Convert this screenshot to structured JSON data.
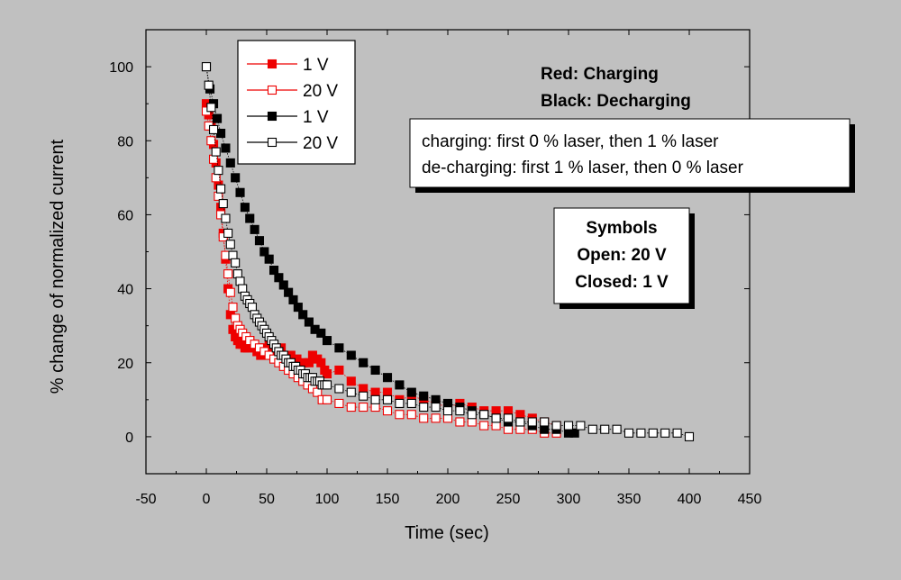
{
  "chart_data": {
    "type": "scatter",
    "title": "",
    "xlabel": "Time (sec)",
    "ylabel": "% change of normalized current",
    "xlim": [
      -50,
      450
    ],
    "ylim": [
      -10,
      110
    ],
    "x_ticks": [
      "-50",
      "0",
      "50",
      "100",
      "150",
      "200",
      "250",
      "300",
      "350",
      "400",
      "450"
    ],
    "y_ticks": [
      "0",
      "20",
      "40",
      "60",
      "80",
      "100"
    ],
    "grid": false,
    "legend_position": "top-left",
    "annotations": {
      "color_key": [
        "Red: Charging",
        "Black: Decharging"
      ],
      "laser_box": [
        "charging: first 0 % laser, then 1 % laser",
        "de-charging: first 1 % laser, then 0 % laser"
      ],
      "symbols_box": [
        "Symbols",
        "Open: 20 V",
        "Closed: 1 V"
      ]
    },
    "colors": {
      "red": "#ee0000",
      "black": "#000000",
      "background": "#c0c0c0"
    },
    "series": [
      {
        "name": "1 V",
        "color": "#ee0000",
        "filled": true,
        "points": [
          [
            0,
            90
          ],
          [
            2,
            87
          ],
          [
            4,
            84
          ],
          [
            6,
            79
          ],
          [
            8,
            74
          ],
          [
            10,
            68
          ],
          [
            12,
            62
          ],
          [
            14,
            55
          ],
          [
            16,
            48
          ],
          [
            18,
            40
          ],
          [
            20,
            33
          ],
          [
            22,
            29
          ],
          [
            24,
            27
          ],
          [
            26,
            26
          ],
          [
            28,
            25
          ],
          [
            30,
            25
          ],
          [
            32,
            24
          ],
          [
            34,
            24
          ],
          [
            36,
            26
          ],
          [
            38,
            25
          ],
          [
            40,
            24
          ],
          [
            42,
            23
          ],
          [
            45,
            22
          ],
          [
            48,
            24
          ],
          [
            52,
            25
          ],
          [
            55,
            24
          ],
          [
            58,
            22
          ],
          [
            62,
            24
          ],
          [
            65,
            22
          ],
          [
            70,
            22
          ],
          [
            75,
            21
          ],
          [
            80,
            20
          ],
          [
            85,
            20
          ],
          [
            88,
            22
          ],
          [
            92,
            21
          ],
          [
            95,
            20
          ],
          [
            98,
            18
          ],
          [
            100,
            17
          ],
          [
            110,
            18
          ],
          [
            120,
            15
          ],
          [
            130,
            13
          ],
          [
            140,
            12
          ],
          [
            150,
            12
          ],
          [
            160,
            10
          ],
          [
            170,
            11
          ],
          [
            180,
            10
          ],
          [
            190,
            9
          ],
          [
            200,
            8
          ],
          [
            210,
            9
          ],
          [
            220,
            8
          ],
          [
            230,
            7
          ],
          [
            240,
            7
          ],
          [
            250,
            7
          ],
          [
            260,
            6
          ],
          [
            270,
            5
          ],
          [
            280,
            4
          ],
          [
            290,
            3
          ]
        ]
      },
      {
        "name": "20 V",
        "color": "#ee0000",
        "filled": false,
        "points": [
          [
            0,
            88
          ],
          [
            2,
            84
          ],
          [
            4,
            80
          ],
          [
            6,
            75
          ],
          [
            8,
            70
          ],
          [
            10,
            65
          ],
          [
            12,
            60
          ],
          [
            14,
            54
          ],
          [
            16,
            49
          ],
          [
            18,
            44
          ],
          [
            20,
            39
          ],
          [
            22,
            35
          ],
          [
            24,
            32
          ],
          [
            26,
            30
          ],
          [
            28,
            29
          ],
          [
            30,
            28
          ],
          [
            33,
            27
          ],
          [
            36,
            26
          ],
          [
            40,
            25
          ],
          [
            44,
            24
          ],
          [
            48,
            23
          ],
          [
            52,
            22
          ],
          [
            56,
            21
          ],
          [
            60,
            20
          ],
          [
            64,
            19
          ],
          [
            68,
            18
          ],
          [
            72,
            17
          ],
          [
            76,
            16
          ],
          [
            80,
            15
          ],
          [
            84,
            14
          ],
          [
            88,
            13
          ],
          [
            92,
            12
          ],
          [
            96,
            10
          ],
          [
            100,
            10
          ],
          [
            110,
            9
          ],
          [
            120,
            8
          ],
          [
            130,
            8
          ],
          [
            140,
            8
          ],
          [
            150,
            7
          ],
          [
            160,
            6
          ],
          [
            170,
            6
          ],
          [
            180,
            5
          ],
          [
            190,
            5
          ],
          [
            200,
            5
          ],
          [
            210,
            4
          ],
          [
            220,
            4
          ],
          [
            230,
            3
          ],
          [
            240,
            3
          ],
          [
            250,
            2
          ],
          [
            260,
            2
          ],
          [
            270,
            2
          ],
          [
            280,
            1
          ],
          [
            290,
            1
          ]
        ]
      },
      {
        "name": "1  V",
        "color": "#000000",
        "filled": true,
        "points": [
          [
            0,
            100
          ],
          [
            3,
            94
          ],
          [
            6,
            90
          ],
          [
            9,
            86
          ],
          [
            12,
            82
          ],
          [
            16,
            78
          ],
          [
            20,
            74
          ],
          [
            24,
            70
          ],
          [
            28,
            66
          ],
          [
            32,
            62
          ],
          [
            36,
            59
          ],
          [
            40,
            56
          ],
          [
            44,
            53
          ],
          [
            48,
            50
          ],
          [
            52,
            48
          ],
          [
            56,
            45
          ],
          [
            60,
            43
          ],
          [
            64,
            41
          ],
          [
            68,
            39
          ],
          [
            72,
            37
          ],
          [
            76,
            35
          ],
          [
            80,
            33
          ],
          [
            85,
            31
          ],
          [
            90,
            29
          ],
          [
            95,
            28
          ],
          [
            100,
            26
          ],
          [
            110,
            24
          ],
          [
            120,
            22
          ],
          [
            130,
            20
          ],
          [
            140,
            18
          ],
          [
            150,
            16
          ],
          [
            160,
            14
          ],
          [
            170,
            12
          ],
          [
            180,
            11
          ],
          [
            190,
            10
          ],
          [
            200,
            9
          ],
          [
            210,
            8
          ],
          [
            220,
            7
          ],
          [
            230,
            6
          ],
          [
            240,
            5
          ],
          [
            250,
            4
          ],
          [
            260,
            4
          ],
          [
            270,
            3
          ],
          [
            280,
            2
          ],
          [
            290,
            2
          ],
          [
            300,
            1
          ],
          [
            305,
            1
          ]
        ]
      },
      {
        "name": "20 V",
        "color": "#000000",
        "filled": false,
        "points": [
          [
            0,
            100
          ],
          [
            2,
            95
          ],
          [
            4,
            89
          ],
          [
            6,
            83
          ],
          [
            8,
            77
          ],
          [
            10,
            72
          ],
          [
            12,
            67
          ],
          [
            14,
            63
          ],
          [
            16,
            59
          ],
          [
            18,
            55
          ],
          [
            20,
            52
          ],
          [
            22,
            49
          ],
          [
            24,
            47
          ],
          [
            26,
            44
          ],
          [
            28,
            42
          ],
          [
            30,
            40
          ],
          [
            32,
            38
          ],
          [
            34,
            37
          ],
          [
            36,
            36
          ],
          [
            38,
            35
          ],
          [
            40,
            33
          ],
          [
            42,
            32
          ],
          [
            44,
            31
          ],
          [
            46,
            30
          ],
          [
            48,
            29
          ],
          [
            50,
            28
          ],
          [
            52,
            27
          ],
          [
            54,
            26
          ],
          [
            56,
            25
          ],
          [
            58,
            24
          ],
          [
            60,
            23
          ],
          [
            62,
            22
          ],
          [
            64,
            22
          ],
          [
            66,
            21
          ],
          [
            68,
            20
          ],
          [
            70,
            20
          ],
          [
            72,
            19
          ],
          [
            74,
            19
          ],
          [
            76,
            18
          ],
          [
            78,
            18
          ],
          [
            80,
            17
          ],
          [
            82,
            17
          ],
          [
            84,
            16
          ],
          [
            86,
            16
          ],
          [
            88,
            16
          ],
          [
            90,
            15
          ],
          [
            92,
            15
          ],
          [
            94,
            15
          ],
          [
            96,
            14
          ],
          [
            98,
            14
          ],
          [
            100,
            14
          ],
          [
            110,
            13
          ],
          [
            120,
            12
          ],
          [
            130,
            11
          ],
          [
            140,
            10
          ],
          [
            150,
            10
          ],
          [
            160,
            9
          ],
          [
            170,
            9
          ],
          [
            180,
            8
          ],
          [
            190,
            8
          ],
          [
            200,
            7
          ],
          [
            210,
            7
          ],
          [
            220,
            6
          ],
          [
            230,
            6
          ],
          [
            240,
            5
          ],
          [
            250,
            5
          ],
          [
            260,
            4
          ],
          [
            270,
            4
          ],
          [
            280,
            4
          ],
          [
            290,
            3
          ],
          [
            300,
            3
          ],
          [
            310,
            3
          ],
          [
            320,
            2
          ],
          [
            330,
            2
          ],
          [
            340,
            2
          ],
          [
            350,
            1
          ],
          [
            360,
            1
          ],
          [
            370,
            1
          ],
          [
            380,
            1
          ],
          [
            390,
            1
          ],
          [
            400,
            0
          ]
        ]
      }
    ]
  }
}
